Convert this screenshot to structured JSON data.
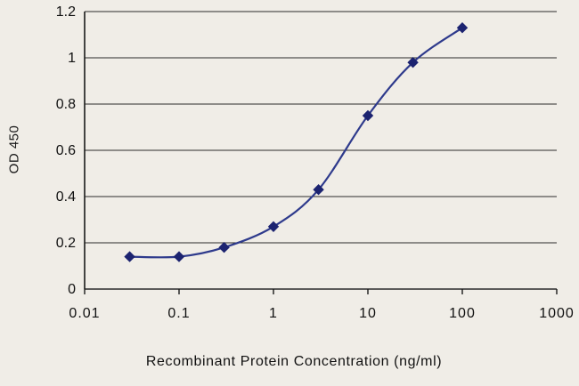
{
  "chart_data": {
    "type": "line",
    "title": "",
    "xlabel": "Recombinant Protein Concentration (ng/ml)",
    "ylabel": "OD 450",
    "x_scale": "log",
    "x": [
      0.03,
      0.1,
      0.3,
      1,
      3,
      10,
      30,
      100
    ],
    "y": [
      0.14,
      0.14,
      0.18,
      0.27,
      0.43,
      0.75,
      0.98,
      1.13
    ],
    "xlim": [
      0.01,
      1000
    ],
    "ylim": [
      0,
      1.2
    ],
    "x_ticks": [
      0.01,
      0.1,
      1,
      10,
      100,
      1000
    ],
    "x_tick_labels": [
      "0.01",
      "0.1",
      "1",
      "10",
      "100",
      "1000"
    ],
    "y_ticks": [
      0,
      0.2,
      0.4,
      0.6,
      0.8,
      1,
      1.2
    ],
    "y_tick_labels": [
      "0",
      "0.2",
      "0.4",
      "0.6",
      "0.8",
      "1",
      "1.2"
    ],
    "grid": "horizontal",
    "legend": "none",
    "marker": "diamond",
    "line_color": "#2e3a8c",
    "marker_color": "#1c2370",
    "grid_color": "#2b2b2b",
    "axis_color": "#1a1a1a",
    "text_color": "#111111",
    "background_color": "#f0ede7"
  }
}
